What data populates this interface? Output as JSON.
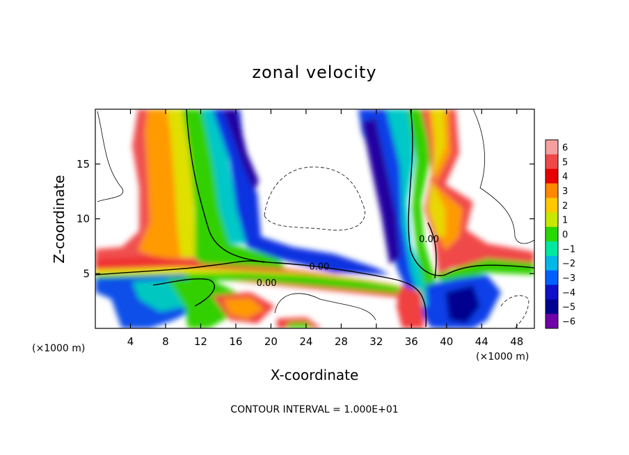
{
  "chart_data": {
    "type": "heatmap",
    "title": "zonal velocity",
    "xlabel": "X-coordinate",
    "ylabel": "Z-coordinate",
    "x_unit_label": "(×1000 m)",
    "x_unit_label_right": "(×1000 m)",
    "xlim": [
      0,
      50
    ],
    "ylim": [
      0,
      20
    ],
    "x_ticks": [
      4,
      8,
      12,
      16,
      20,
      24,
      28,
      32,
      36,
      40,
      44,
      48
    ],
    "x_tick_labels": [
      "4",
      "8",
      "12",
      "16",
      "20",
      "24",
      "28",
      "32",
      "36",
      "40",
      "44",
      "48"
    ],
    "y_ticks": [
      5,
      10,
      15
    ],
    "y_tick_labels": [
      "5",
      "10",
      "15"
    ],
    "colorbar": {
      "levels": [
        "6",
        "5",
        "4",
        "3",
        "2",
        "1",
        "0",
        "−1",
        "−2",
        "−3",
        "−4",
        "−5",
        "−6"
      ],
      "colors": [
        "#f4a0a0",
        "#f04848",
        "#e80000",
        "#ff8800",
        "#ffc800",
        "#c8e800",
        "#28d800",
        "#00e8a0",
        "#00b8e8",
        "#0060ff",
        "#1010c8",
        "#000090",
        "#7000a8"
      ]
    },
    "contour_labels": [
      {
        "text": "0.00",
        "x": 19.5,
        "y": 4.0
      },
      {
        "text": "0.00",
        "x": 25.5,
        "y": 5.5
      },
      {
        "text": "0.00",
        "x": 38.0,
        "y": 8.0
      }
    ],
    "footer": "CONTOUR INTERVAL = 1.000E+01"
  }
}
